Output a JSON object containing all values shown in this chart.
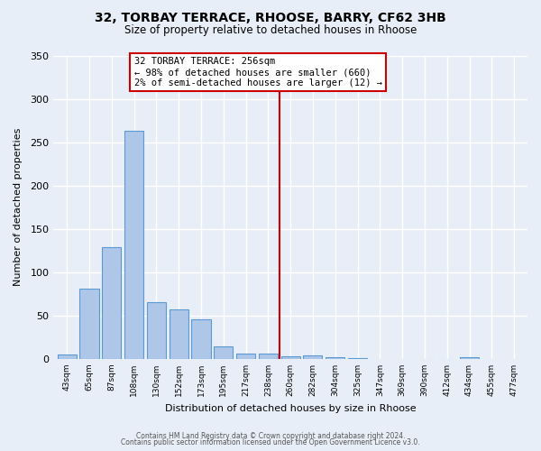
{
  "title": "32, TORBAY TERRACE, RHOOSE, BARRY, CF62 3HB",
  "subtitle": "Size of property relative to detached houses in Rhoose",
  "xlabel": "Distribution of detached houses by size in Rhoose",
  "ylabel": "Number of detached properties",
  "bar_labels": [
    "43sqm",
    "65sqm",
    "87sqm",
    "108sqm",
    "130sqm",
    "152sqm",
    "173sqm",
    "195sqm",
    "217sqm",
    "238sqm",
    "260sqm",
    "282sqm",
    "304sqm",
    "325sqm",
    "347sqm",
    "369sqm",
    "390sqm",
    "412sqm",
    "434sqm",
    "455sqm",
    "477sqm"
  ],
  "bar_values": [
    5,
    81,
    129,
    263,
    65,
    57,
    46,
    15,
    6,
    6,
    3,
    4,
    2,
    1,
    0,
    0,
    0,
    0,
    2,
    0,
    0
  ],
  "bar_color": "#aec6e8",
  "bar_edge_color": "#5b9bd5",
  "vline_x_idx": 9.5,
  "vline_color": "#cc0000",
  "annotation_title": "32 TORBAY TERRACE: 256sqm",
  "annotation_line1": "← 98% of detached houses are smaller (660)",
  "annotation_line2": "2% of semi-detached houses are larger (12) →",
  "annotation_box_color": "#ffffff",
  "annotation_box_edge": "#cc0000",
  "ylim": [
    0,
    350
  ],
  "yticks": [
    0,
    50,
    100,
    150,
    200,
    250,
    300,
    350
  ],
  "bg_color": "#e8eef7",
  "footer1": "Contains HM Land Registry data © Crown copyright and database right 2024.",
  "footer2": "Contains public sector information licensed under the Open Government Licence v3.0."
}
